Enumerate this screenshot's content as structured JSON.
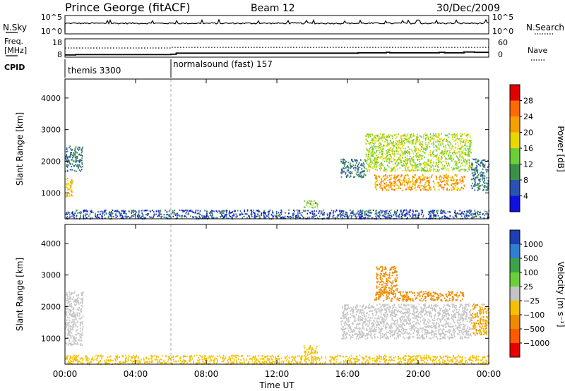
{
  "header": {
    "station": "Prince George (fitACF)",
    "beam": "Beam 12",
    "date": "30/Dec/2009"
  },
  "chart_data": [
    {
      "type": "line",
      "panel": "noise",
      "left_label": "N.Sky",
      "right_label": "N.Search",
      "yticks_left": [
        "10^5",
        "10^0"
      ],
      "yticks_right": [
        "10^5",
        "10^0"
      ]
    },
    {
      "type": "line",
      "panel": "frequency",
      "left_label_lines": [
        "Freq.",
        "[MHz]"
      ],
      "right_label": "Nave",
      "yticks_left": [
        "18",
        "8"
      ],
      "yticks_right": [
        "60",
        "0"
      ],
      "series": [
        {
          "name": "Freq.",
          "style": "solid",
          "x": [
            0,
            0.6,
            6,
            6.3,
            16.6,
            18.2,
            18.4,
            21.2,
            21.5,
            22.6,
            23.2,
            24
          ],
          "y": [
            9.2,
            9.4,
            9.6,
            10.2,
            10.4,
            10.6,
            10.4,
            10.6,
            10.4,
            10.8,
            10.6,
            10.6
          ]
        },
        {
          "name": "Nave",
          "style": "dotted",
          "x": [
            0,
            0.5,
            6,
            24
          ],
          "y": [
            30,
            30,
            32,
            32
          ]
        }
      ]
    },
    {
      "type": "table",
      "panel": "cpid",
      "label": "CPID",
      "modes": [
        {
          "name": "themis 3300",
          "start_hour": 0
        },
        {
          "name": "normalsound (fast) 157",
          "start_hour": 6
        }
      ]
    },
    {
      "type": "heatmap",
      "panel": "power",
      "ylabel": "Slant Range [km]",
      "ylim": [
        180,
        4600
      ],
      "yticks": [
        1000,
        2000,
        3000,
        4000
      ],
      "xlim": [
        0,
        24
      ],
      "colorbar": {
        "label": "Power [dB]",
        "ticks": [
          "28",
          "24",
          "20",
          "16",
          "12",
          "8",
          "4"
        ],
        "colors": [
          "#e00000",
          "#ff6a00",
          "#f5a000",
          "#e8d800",
          "#6ccf3a",
          "#3c8f48",
          "#2a52b0",
          "#1010e0"
        ]
      },
      "regions": [
        {
          "x0": 0.0,
          "x1": 0.4,
          "y0": 900,
          "y1": 1500,
          "level": 20
        },
        {
          "x0": 0.0,
          "x1": 1.0,
          "y0": 1700,
          "y1": 2500,
          "level": 8
        },
        {
          "x0": 0.0,
          "x1": 24.0,
          "y0": 200,
          "y1": 480,
          "level": 6
        },
        {
          "x0": 13.5,
          "x1": 14.3,
          "y0": 550,
          "y1": 800,
          "level": 14
        },
        {
          "x0": 15.6,
          "x1": 17.0,
          "y0": 1500,
          "y1": 2100,
          "level": 8
        },
        {
          "x0": 17.0,
          "x1": 23.0,
          "y0": 1700,
          "y1": 2900,
          "level": 16
        },
        {
          "x0": 17.5,
          "x1": 22.6,
          "y0": 1100,
          "y1": 1600,
          "level": 22
        },
        {
          "x0": 23.0,
          "x1": 24.0,
          "y0": 1100,
          "y1": 2100,
          "level": 8
        }
      ]
    },
    {
      "type": "heatmap",
      "panel": "velocity",
      "ylabel": "Slant Range [km]",
      "xlabel": "Time UT",
      "ylim": [
        180,
        4600
      ],
      "yticks": [
        1000,
        2000,
        3000,
        4000
      ],
      "xlim": [
        0,
        24
      ],
      "xticks": [
        "00:00",
        "04:00",
        "08:00",
        "12:00",
        "16:00",
        "20:00",
        "00:00"
      ],
      "colorbar": {
        "label": "Velocity [m s⁻¹]",
        "ticks": [
          "1000",
          "500",
          "100",
          "25",
          "−25",
          "−100",
          "−500",
          "−1000"
        ],
        "colors": [
          "#1f3fb0",
          "#2f7fcf",
          "#3ea24a",
          "#6ccf3a",
          "#c4c4c4",
          "#f5c000",
          "#f08a00",
          "#ff5a00",
          "#e80000"
        ]
      },
      "regions": [
        {
          "x0": 0.0,
          "x1": 1.0,
          "y0": 800,
          "y1": 2500,
          "level": 0
        },
        {
          "x0": 0.0,
          "x1": 24.0,
          "y0": 200,
          "y1": 480,
          "level": -60
        },
        {
          "x0": 13.5,
          "x1": 14.3,
          "y0": 450,
          "y1": 800,
          "level": -60
        },
        {
          "x0": 15.6,
          "x1": 23.0,
          "y0": 1000,
          "y1": 2100,
          "level": 0
        },
        {
          "x0": 17.6,
          "x1": 18.8,
          "y0": 2400,
          "y1": 3300,
          "level": -300
        },
        {
          "x0": 17.5,
          "x1": 22.6,
          "y0": 2200,
          "y1": 2500,
          "level": -200
        },
        {
          "x0": 23.0,
          "x1": 24.0,
          "y0": 1100,
          "y1": 2100,
          "level": -100
        }
      ]
    }
  ]
}
